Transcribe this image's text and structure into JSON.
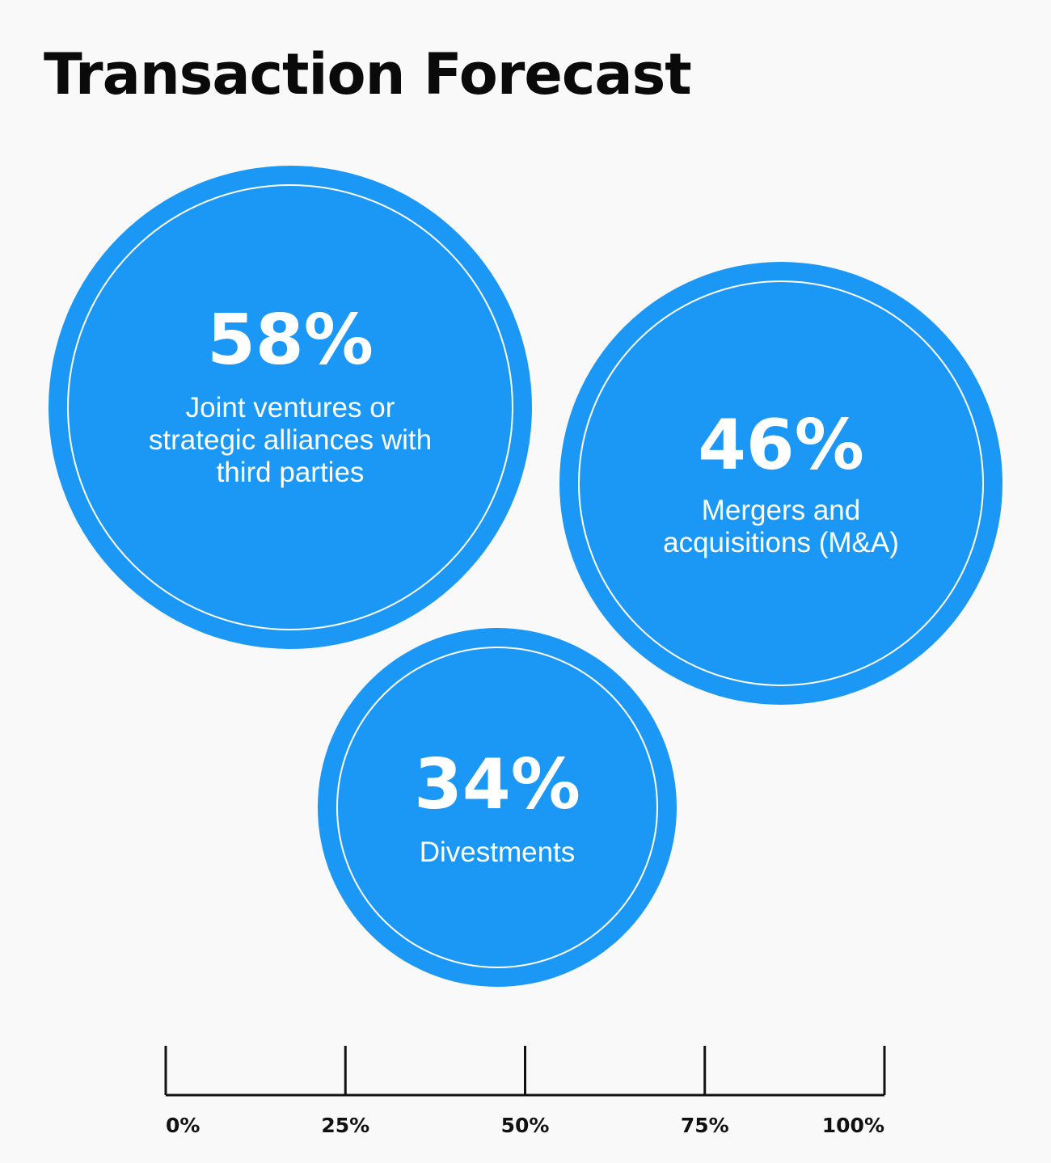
{
  "title": "Transaction Forecast",
  "colors": {
    "bubble": "#1b98f5",
    "ring": "#ffffff",
    "axis": "#111111",
    "background": "#f9f9f9"
  },
  "chart_data": {
    "type": "bubble",
    "title": "Transaction Forecast",
    "series": [
      {
        "value": 58,
        "value_label": "58%",
        "label_lines": [
          "Joint ventures or",
          "strategic alliances with",
          "third parties"
        ]
      },
      {
        "value": 46,
        "value_label": "46%",
        "label_lines": [
          "Mergers and",
          "acquisitions (M&A)"
        ]
      },
      {
        "value": 34,
        "value_label": "34%",
        "label_lines": [
          "Divestments"
        ]
      }
    ],
    "axis": {
      "range": [
        0,
        100
      ],
      "ticks": [
        0,
        25,
        50,
        75,
        100
      ],
      "tick_labels": [
        "0%",
        "25%",
        "50%",
        "75%",
        "100%"
      ]
    }
  }
}
